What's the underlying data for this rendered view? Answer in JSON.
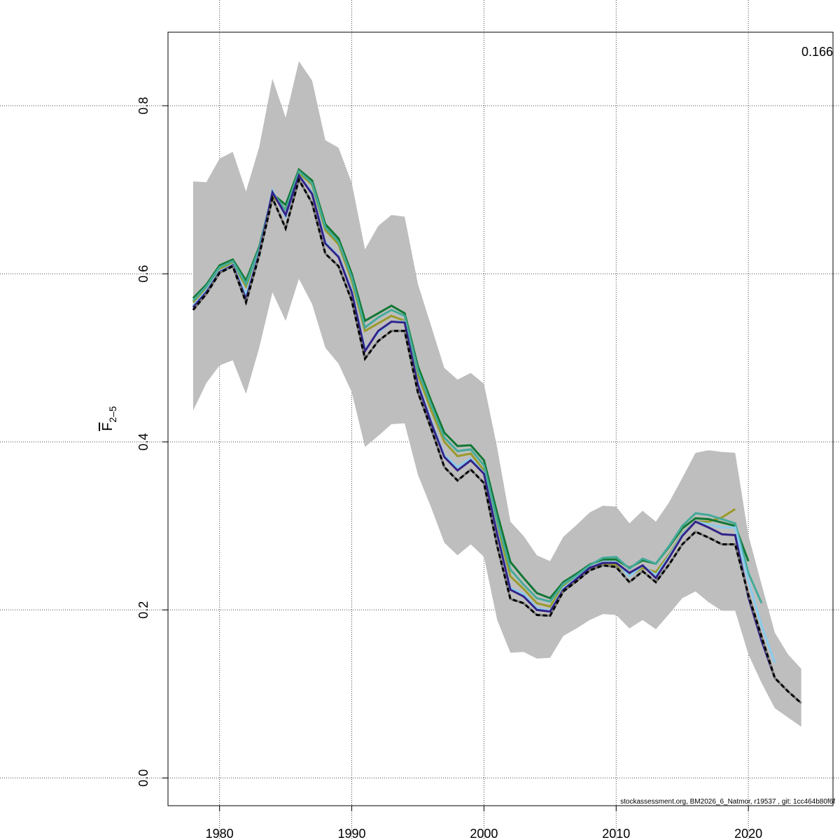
{
  "chart_data": {
    "type": "line",
    "title": "",
    "xlabel": "",
    "ylabel": "F",
    "ylabel_subscript": "2–5",
    "annotation": "0.166",
    "footer": "stockassessment.org, BM2026_6_Natmor, r19537 , git: 1cc464b80f6f",
    "xlim": [
      1976.1,
      2026.4
    ],
    "ylim": [
      -0.033,
      0.8875
    ],
    "xticks": [
      1980,
      1990,
      2000,
      2010,
      2020
    ],
    "yticks": [
      0.0,
      0.2,
      0.4,
      0.6,
      0.8
    ],
    "ytick_labels": [
      "0.0",
      "0.2",
      "0.4",
      "0.6",
      "0.8"
    ],
    "grid": true,
    "band": {
      "color": "#bebebe",
      "start_year": 1978,
      "upper": [
        0.71,
        0.709,
        0.737,
        0.745,
        0.698,
        0.751,
        0.832,
        0.786,
        0.853,
        0.83,
        0.759,
        0.75,
        0.708,
        0.629,
        0.657,
        0.67,
        0.668,
        0.588,
        0.538,
        0.488,
        0.474,
        0.482,
        0.469,
        0.393,
        0.305,
        0.288,
        0.265,
        0.258,
        0.287,
        0.301,
        0.316,
        0.324,
        0.323,
        0.303,
        0.318,
        0.305,
        0.328,
        0.357,
        0.387,
        0.39,
        0.388,
        0.387,
        0.289,
        0.23,
        0.173,
        0.147,
        0.13
      ],
      "lower": [
        0.437,
        0.47,
        0.491,
        0.497,
        0.457,
        0.512,
        0.578,
        0.544,
        0.594,
        0.564,
        0.512,
        0.493,
        0.459,
        0.394,
        0.407,
        0.421,
        0.422,
        0.361,
        0.322,
        0.28,
        0.265,
        0.278,
        0.263,
        0.188,
        0.149,
        0.15,
        0.142,
        0.143,
        0.169,
        0.178,
        0.188,
        0.195,
        0.194,
        0.178,
        0.188,
        0.177,
        0.195,
        0.214,
        0.222,
        0.209,
        0.199,
        0.199,
        0.147,
        0.113,
        0.083,
        0.072,
        0.061
      ]
    },
    "series": [
      {
        "color": "#9a9a2a",
        "start_year": 1978,
        "values": [
          0.566,
          0.583,
          0.606,
          0.613,
          0.585,
          0.628,
          0.692,
          0.677,
          0.72,
          0.706,
          0.652,
          0.635,
          0.592,
          0.532,
          0.541,
          0.55,
          0.544,
          0.48,
          0.438,
          0.4,
          0.383,
          0.386,
          0.366,
          0.3,
          0.24,
          0.225,
          0.208,
          0.204,
          0.228,
          0.238,
          0.25,
          0.254,
          0.254,
          0.241,
          0.25,
          0.245,
          0.266,
          0.291,
          0.305,
          0.305,
          0.31,
          0.32
        ]
      },
      {
        "color": "#117733",
        "start_year": 1978,
        "values": [
          0.571,
          0.587,
          0.61,
          0.617,
          0.592,
          0.632,
          0.695,
          0.682,
          0.724,
          0.711,
          0.659,
          0.642,
          0.6,
          0.544,
          0.553,
          0.562,
          0.553,
          0.49,
          0.449,
          0.411,
          0.395,
          0.396,
          0.378,
          0.315,
          0.257,
          0.238,
          0.22,
          0.214,
          0.233,
          0.243,
          0.254,
          0.26,
          0.26,
          0.25,
          0.259,
          0.255,
          0.275,
          0.297,
          0.309,
          0.308,
          0.304,
          0.3,
          0.258
        ]
      },
      {
        "color": "#44aa99",
        "start_year": 1978,
        "values": [
          0.568,
          0.585,
          0.608,
          0.615,
          0.588,
          0.63,
          0.696,
          0.676,
          0.722,
          0.708,
          0.655,
          0.638,
          0.596,
          0.536,
          0.548,
          0.557,
          0.55,
          0.485,
          0.444,
          0.405,
          0.389,
          0.391,
          0.372,
          0.307,
          0.248,
          0.23,
          0.214,
          0.21,
          0.231,
          0.241,
          0.253,
          0.262,
          0.263,
          0.249,
          0.261,
          0.255,
          0.276,
          0.3,
          0.315,
          0.313,
          0.308,
          0.303,
          0.244,
          0.208
        ]
      },
      {
        "color": "#88ccee",
        "start_year": 1978,
        "values": [
          0.562,
          0.58,
          0.603,
          0.611,
          0.575,
          0.625,
          0.699,
          0.668,
          0.717,
          0.697,
          0.638,
          0.621,
          0.58,
          0.51,
          0.53,
          0.543,
          0.543,
          0.47,
          0.425,
          0.384,
          0.37,
          0.38,
          0.363,
          0.293,
          0.226,
          0.219,
          0.202,
          0.199,
          0.226,
          0.238,
          0.25,
          0.257,
          0.257,
          0.24,
          0.253,
          0.241,
          0.264,
          0.29,
          0.305,
          0.302,
          0.298,
          0.298,
          0.235,
          0.181,
          0.137
        ]
      },
      {
        "color": "#332288",
        "start_year": 1978,
        "values": [
          0.56,
          0.578,
          0.602,
          0.61,
          0.57,
          0.624,
          0.697,
          0.67,
          0.717,
          0.695,
          0.636,
          0.62,
          0.578,
          0.508,
          0.532,
          0.543,
          0.542,
          0.468,
          0.423,
          0.382,
          0.366,
          0.378,
          0.362,
          0.29,
          0.224,
          0.216,
          0.2,
          0.198,
          0.224,
          0.237,
          0.25,
          0.256,
          0.256,
          0.244,
          0.253,
          0.238,
          0.262,
          0.288,
          0.305,
          0.298,
          0.29,
          0.289,
          0.215,
          0.163,
          0.119,
          0.103
        ]
      },
      {
        "color": "#000000",
        "dashed": true,
        "start_year": 1978,
        "values": [
          0.557,
          0.576,
          0.601,
          0.609,
          0.566,
          0.622,
          0.69,
          0.654,
          0.712,
          0.684,
          0.624,
          0.609,
          0.568,
          0.499,
          0.52,
          0.532,
          0.532,
          0.459,
          0.416,
          0.37,
          0.354,
          0.367,
          0.351,
          0.276,
          0.213,
          0.208,
          0.194,
          0.193,
          0.222,
          0.234,
          0.247,
          0.253,
          0.251,
          0.233,
          0.246,
          0.233,
          0.254,
          0.278,
          0.293,
          0.286,
          0.278,
          0.278,
          0.218,
          0.168,
          0.119,
          0.103,
          0.089
        ]
      }
    ]
  }
}
